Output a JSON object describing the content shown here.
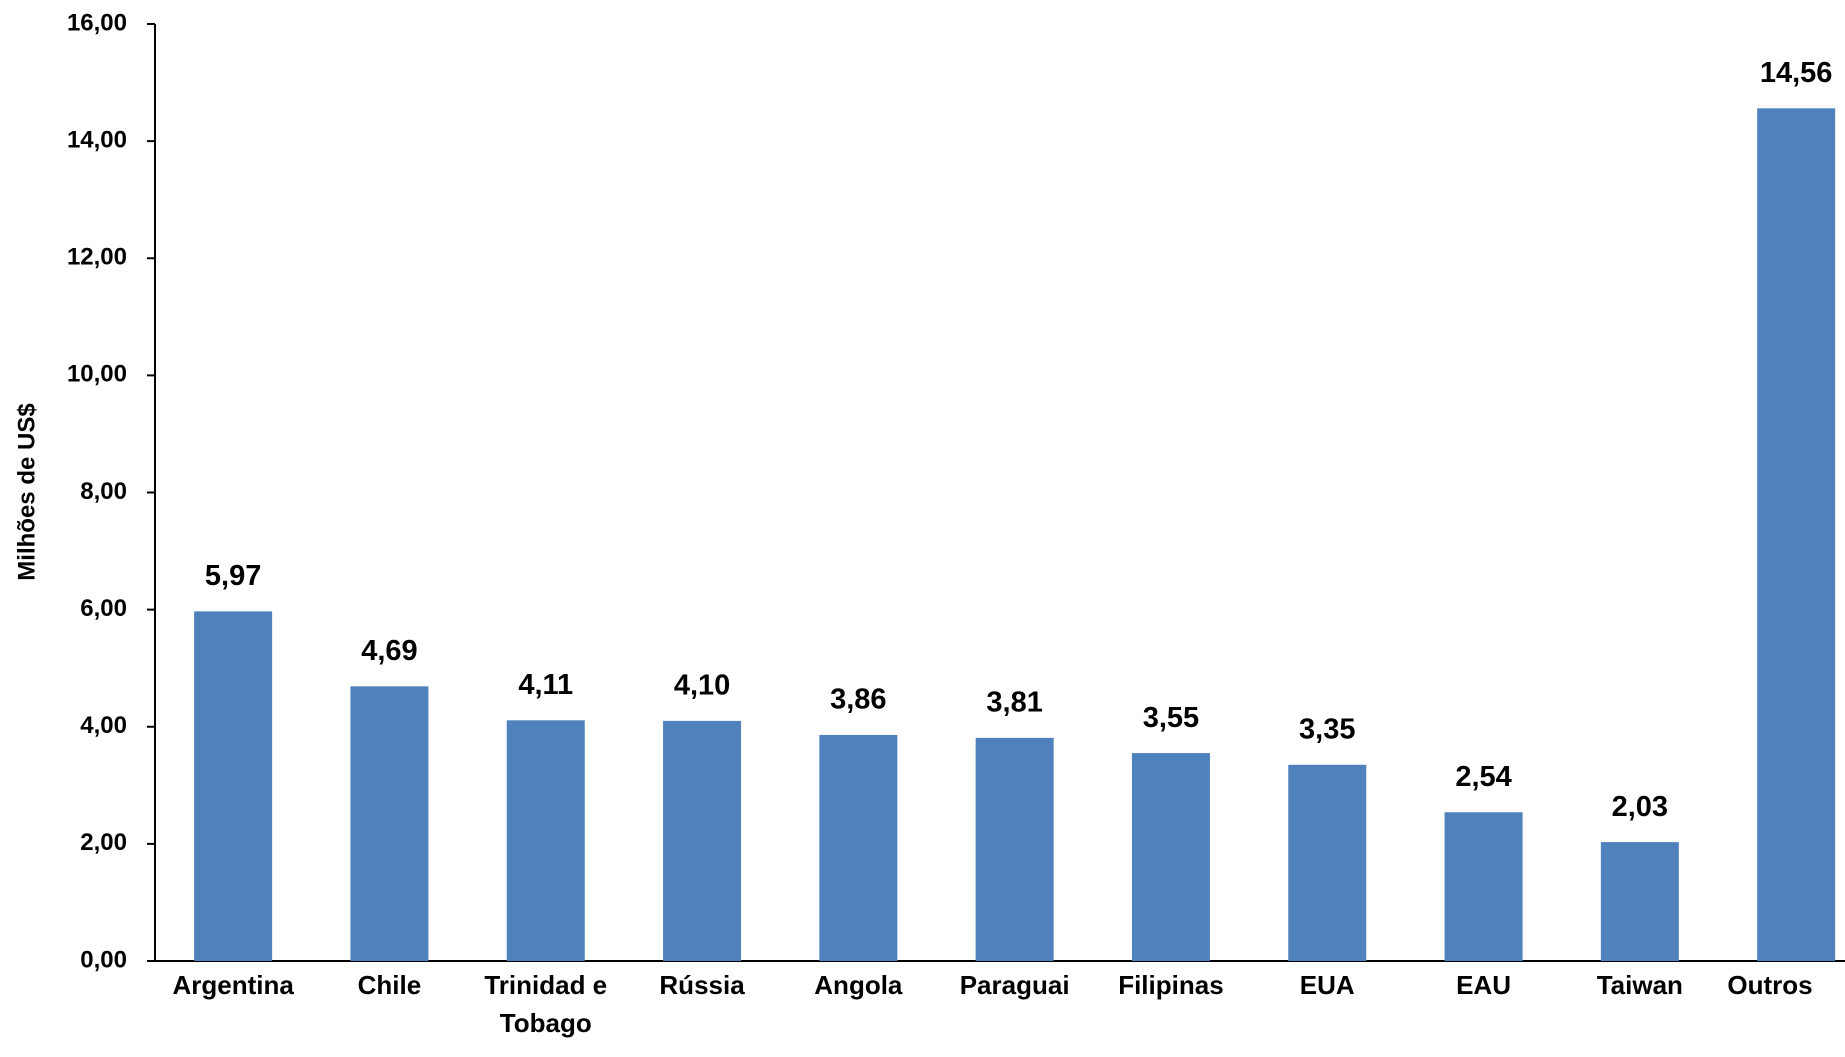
{
  "chart_data": {
    "type": "bar",
    "y_axis_label": "Milhões de US$",
    "categories": [
      "Argentina",
      "Chile",
      "Trinidad e Tobago",
      "Rússia",
      "Angola",
      "Paraguai",
      "Filipinas",
      "EUA",
      "EAU",
      "Taiwan",
      "Outros"
    ],
    "values": [
      5.97,
      4.69,
      4.11,
      4.1,
      3.86,
      3.81,
      3.55,
      3.35,
      2.54,
      2.03,
      14.56
    ],
    "value_labels": [
      "5,97",
      "4,69",
      "4,11",
      "4,10",
      "3,86",
      "3,81",
      "3,55",
      "3,35",
      "2,54",
      "2,03",
      "14,56"
    ],
    "color": "#4f81bd",
    "ylim": [
      0,
      16
    ],
    "yticks": [
      {
        "value": 0,
        "label": "0,00"
      },
      {
        "value": 2,
        "label": "2,00"
      },
      {
        "value": 4,
        "label": "4,00"
      },
      {
        "value": 6,
        "label": "6,00"
      },
      {
        "value": 8,
        "label": "8,00"
      },
      {
        "value": 10,
        "label": "10,00"
      },
      {
        "value": 12,
        "label": "12,00"
      },
      {
        "value": 14,
        "label": "14,00"
      },
      {
        "value": 16,
        "label": "16,00"
      }
    ],
    "grid": false
  }
}
